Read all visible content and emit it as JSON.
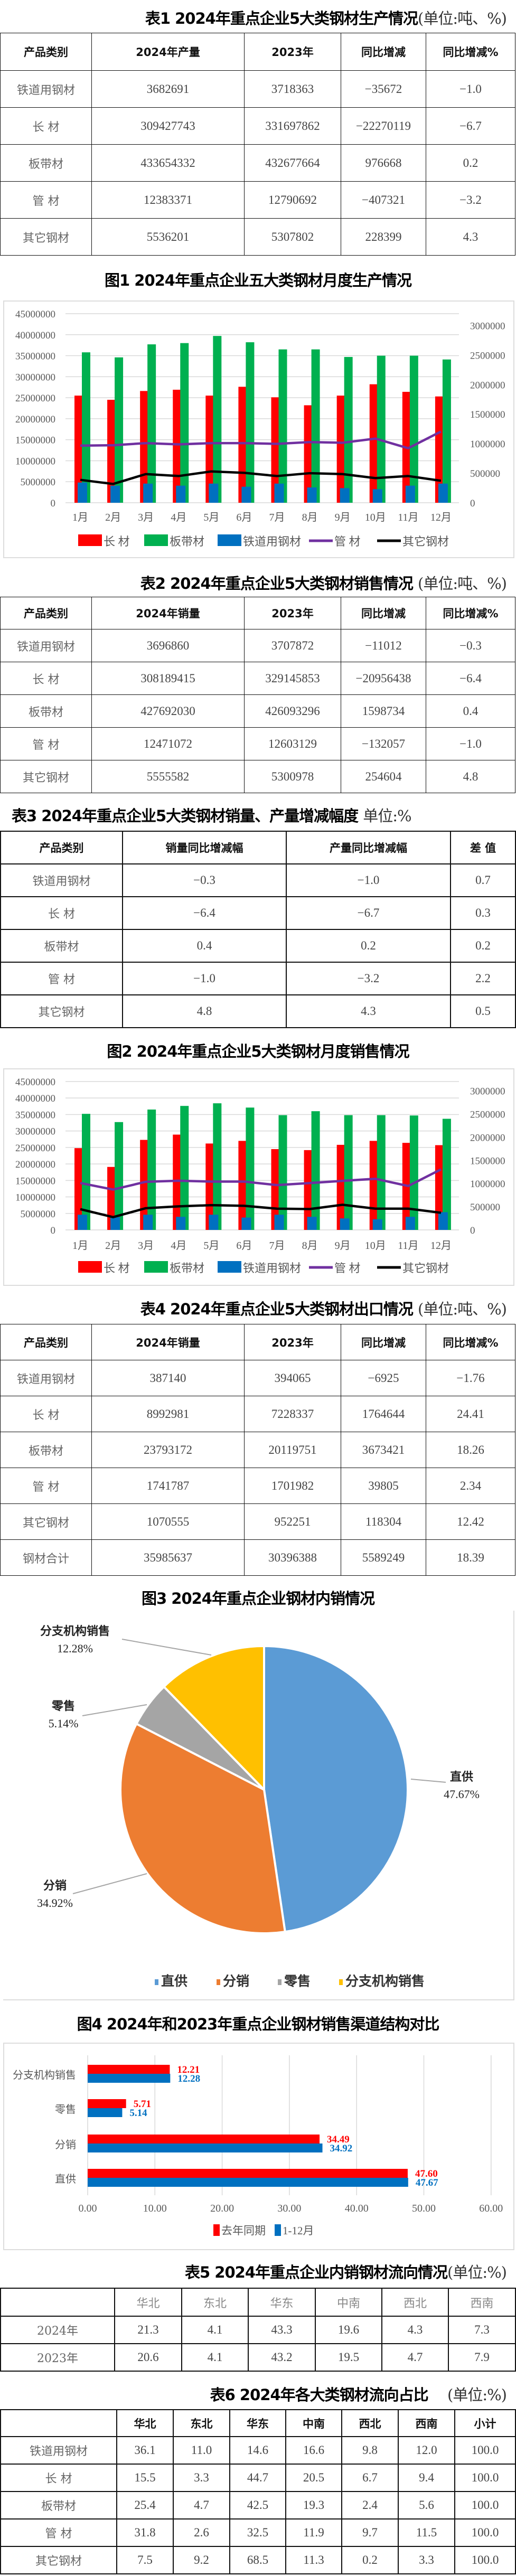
{
  "table1": {
    "title": "表1 2024年重点企业5大类钢材生产情况",
    "unit": "(单位:吨、%)",
    "headers": [
      "产品类别",
      "2024年产量",
      "2023年",
      "同比增减",
      "同比增减%"
    ],
    "rows": [
      [
        "铁道用钢材",
        "3682691",
        "3718363",
        "−35672",
        "−1.0"
      ],
      [
        "长  材",
        "309427743",
        "331697862",
        "−22270119",
        "−6.7"
      ],
      [
        "板带材",
        "433654332",
        "432677664",
        "976668",
        "0.2"
      ],
      [
        "管  材",
        "12383371",
        "12790692",
        "−407321",
        "−3.2"
      ],
      [
        "其它钢材",
        "5536201",
        "5307802",
        "228399",
        "4.3"
      ]
    ]
  },
  "fig1": {
    "title": "图1   2024年重点企业五大类钢材月度生产情况"
  },
  "table2": {
    "title": "表2 2024年重点企业5大类钢材销售情况",
    "unit": "(单位:吨、%)",
    "headers": [
      "产品类别",
      "2024年销量",
      "2023年",
      "同比增减",
      "同比增减%"
    ],
    "rows": [
      [
        "铁道用钢材",
        "3696860",
        "3707872",
        "−11012",
        "−0.3"
      ],
      [
        "长  材",
        "308189415",
        "329145853",
        "−20956438",
        "−6.4"
      ],
      [
        "板带材",
        "427692030",
        "426093296",
        "1598734",
        "0.4"
      ],
      [
        "管  材",
        "12471072",
        "12603129",
        "−132057",
        "−1.0"
      ],
      [
        "其它钢材",
        "5555582",
        "5300978",
        "254604",
        "4.8"
      ]
    ]
  },
  "table3": {
    "title": "表3 2024年重点企业5大类钢材销量、产量增减幅度",
    "unit": "单位:%",
    "headers": [
      "产品类别",
      "销量同比增减幅",
      "产量同比增减幅",
      "差 值"
    ],
    "rows": [
      [
        "铁道用钢材",
        "−0.3",
        "−1.0",
        "0.7"
      ],
      [
        "长  材",
        "−6.4",
        "−6.7",
        "0.3"
      ],
      [
        "板带材",
        "0.4",
        "0.2",
        "0.2"
      ],
      [
        "管  材",
        "−1.0",
        "−3.2",
        "2.2"
      ],
      [
        "其它钢材",
        "4.8",
        "4.3",
        "0.5"
      ]
    ]
  },
  "fig2": {
    "title": "图2  2024年重点企业5大类钢材月度销售情况"
  },
  "table4": {
    "title": "表4 2024年重点企业5大类钢材出口情况",
    "unit": "(单位:吨、%)",
    "headers": [
      "产品类别",
      "2024年销量",
      "2023年",
      "同比增减",
      "同比增减%"
    ],
    "rows": [
      [
        "铁道用钢材",
        "387140",
        "394065",
        "−6925",
        "−1.76"
      ],
      [
        "长  材",
        "8992981",
        "7228337",
        "1764644",
        "24.41"
      ],
      [
        "板带材",
        "23793172",
        "20119751",
        "3673421",
        "18.26"
      ],
      [
        "管  材",
        "1741787",
        "1701982",
        "39805",
        "2.34"
      ],
      [
        "其它钢材",
        "1070555",
        "952251",
        "118304",
        "12.42"
      ],
      [
        "钢材合计",
        "35985637",
        "30396388",
        "5589249",
        "18.39"
      ]
    ]
  },
  "fig3": {
    "title": "图3  2024年重点企业钢材内销情况"
  },
  "fig4": {
    "title": "图4  2024年和2023年重点企业钢材销售渠道结构对比"
  },
  "table5": {
    "title": "表5  2024年重点企业内销钢材流向情况",
    "unit": "(单位:%)",
    "headers": [
      "",
      "华北",
      "东北",
      "华东",
      "中南",
      "西北",
      "西南"
    ],
    "rows": [
      [
        "2024年",
        "21.3",
        "4.1",
        "43.3",
        "19.6",
        "4.3",
        "7.3"
      ],
      [
        "2023年",
        "20.6",
        "4.1",
        "43.2",
        "19.5",
        "4.7",
        "7.9"
      ]
    ]
  },
  "table6": {
    "title": "表6  2024年各大类钢材流向占比",
    "unit": "(单位:%)",
    "headers": [
      "",
      "华北",
      "东北",
      "华东",
      "中南",
      "西北",
      "西南",
      "小计"
    ],
    "rows": [
      [
        "铁道用钢材",
        "36.1",
        "11.0",
        "14.6",
        "16.6",
        "9.8",
        "12.0",
        "100.0"
      ],
      [
        "长  材",
        "15.5",
        "3.3",
        "44.7",
        "20.5",
        "6.7",
        "9.4",
        "100.0"
      ],
      [
        "板带材",
        "25.4",
        "4.7",
        "42.5",
        "19.3",
        "2.4",
        "5.6",
        "100.0"
      ],
      [
        "管  材",
        "31.8",
        "2.6",
        "32.5",
        "11.9",
        "9.7",
        "11.5",
        "100.0"
      ],
      [
        "其它钢材",
        "7.5",
        "9.2",
        "68.5",
        "11.3",
        "0.2",
        "3.3",
        "100.0"
      ]
    ]
  },
  "chart_data": [
    {
      "id": "fig1",
      "type": "bar+line",
      "title": "图1   2024年重点企业五大类钢材月度生产情况",
      "categories": [
        "1月",
        "2月",
        "3月",
        "4月",
        "5月",
        "6月",
        "7月",
        "8月",
        "9月",
        "10月",
        "11月",
        "12月"
      ],
      "ylim": [
        0,
        45000000
      ],
      "yticks": [
        "0",
        "5000000",
        "10000000",
        "15000000",
        "20000000",
        "25000000",
        "30000000",
        "35000000",
        "40000000",
        "45000000"
      ],
      "y2lim": [
        0,
        3200000
      ],
      "y2ticks": [
        "0",
        "500000",
        "1000000",
        "1500000",
        "2000000",
        "2500000",
        "3000000"
      ],
      "grid": true,
      "legend": "bottom",
      "series": [
        {
          "name": "长 材",
          "kind": "bar",
          "axis": "left",
          "color": "#FF0000",
          "values": [
            25500000,
            24500000,
            26600000,
            26900000,
            25500000,
            27600000,
            25100000,
            23200000,
            25500000,
            28200000,
            26400000,
            25300000
          ]
        },
        {
          "name": "板带材",
          "kind": "bar",
          "axis": "left",
          "color": "#00B050",
          "values": [
            35800000,
            34600000,
            37700000,
            38000000,
            39700000,
            38200000,
            36500000,
            36500000,
            34700000,
            35000000,
            35000000,
            34100000
          ]
        },
        {
          "name": "铁道用钢材",
          "kind": "bar",
          "axis": "right",
          "color": "#0070C0",
          "values": [
            342000,
            289000,
            324000,
            289000,
            324000,
            271000,
            324000,
            259000,
            247000,
            229000,
            289000,
            324000
          ]
        },
        {
          "name": "管 材",
          "kind": "line",
          "axis": "right",
          "color": "#7030A0",
          "values": [
            967000,
            973000,
            1009000,
            988000,
            1009000,
            1009000,
            997000,
            1027000,
            1015000,
            1086000,
            923000,
            1205000
          ]
        },
        {
          "name": "其它钢材",
          "kind": "line",
          "axis": "right",
          "color": "#000000",
          "values": [
            387000,
            318000,
            485000,
            452000,
            530000,
            506000,
            452000,
            500000,
            485000,
            417000,
            452000,
            372000
          ]
        }
      ]
    },
    {
      "id": "fig2",
      "type": "bar+line",
      "title": "图2  2024年重点企业5大类钢材月度销售情况",
      "categories": [
        "1月",
        "2月",
        "3月",
        "4月",
        "5月",
        "6月",
        "7月",
        "8月",
        "9月",
        "10月",
        "11月",
        "12月"
      ],
      "ylim": [
        0,
        45000000
      ],
      "yticks": [
        "0",
        "5000000",
        "10000000",
        "15000000",
        "20000000",
        "25000000",
        "30000000",
        "35000000",
        "40000000",
        "45000000"
      ],
      "y2lim": [
        0,
        3200000
      ],
      "y2ticks": [
        "0",
        "500000",
        "1000000",
        "1500000",
        "2000000",
        "2500000",
        "3000000"
      ],
      "grid": true,
      "legend": "bottom",
      "series": [
        {
          "name": "长 材",
          "kind": "bar",
          "axis": "left",
          "color": "#FF0000",
          "values": [
            24800000,
            19100000,
            27300000,
            28900000,
            26200000,
            27000000,
            24500000,
            24200000,
            25800000,
            27000000,
            26400000,
            25700000
          ]
        },
        {
          "name": "板带材",
          "kind": "bar",
          "axis": "left",
          "color": "#00B050",
          "values": [
            35200000,
            32700000,
            36500000,
            37600000,
            38400000,
            37100000,
            34800000,
            36000000,
            34800000,
            34800000,
            34700000,
            33700000
          ]
        },
        {
          "name": "铁道用钢材",
          "kind": "bar",
          "axis": "right",
          "color": "#0070C0",
          "values": [
            328000,
            275000,
            328000,
            282000,
            328000,
            267000,
            328000,
            282000,
            248000,
            229000,
            282000,
            382000
          ]
        },
        {
          "name": "管 材",
          "kind": "line",
          "axis": "right",
          "color": "#7030A0",
          "values": [
            1011000,
            870000,
            1038000,
            1061000,
            1042000,
            1042000,
            966000,
            1011000,
            1057000,
            1103000,
            947000,
            1305000
          ]
        },
        {
          "name": "其它钢材",
          "kind": "line",
          "axis": "right",
          "color": "#000000",
          "values": [
            447000,
            275000,
            469000,
            508000,
            534000,
            519000,
            458000,
            450000,
            542000,
            458000,
            458000,
            370000
          ]
        }
      ]
    },
    {
      "id": "fig3",
      "type": "pie",
      "title": "图3  2024年重点企业钢材内销情况",
      "legend": "bottom",
      "slices": [
        {
          "name": "直供",
          "value": 47.67,
          "label": "47.67%",
          "color": "#5B9BD5"
        },
        {
          "name": "分销",
          "value": 34.92,
          "label": "34.92%",
          "color": "#ED7D31"
        },
        {
          "name": "零售",
          "value": 5.14,
          "label": "5.14%",
          "color": "#A5A5A5"
        },
        {
          "name": "分支机构销售",
          "value": 12.28,
          "label": "12.28%",
          "color": "#FFC000"
        }
      ]
    },
    {
      "id": "fig4",
      "type": "bar",
      "orientation": "horizontal",
      "title": "图4  2024年和2023年重点企业钢材销售渠道结构对比",
      "categories": [
        "分支机构销售",
        "零售",
        "分销",
        "直供"
      ],
      "xlim": [
        0,
        60
      ],
      "xticks": [
        "0.00",
        "10.00",
        "20.00",
        "30.00",
        "40.00",
        "50.00",
        "60.00"
      ],
      "grid": true,
      "legend": "bottom",
      "series": [
        {
          "name": "去年同期",
          "color": "#FF0000",
          "values": [
            12.21,
            5.71,
            34.49,
            47.6
          ],
          "labels": [
            "12.21",
            "5.71",
            "34.49",
            "47.60"
          ]
        },
        {
          "name": "1-12月",
          "color": "#0070C0",
          "values": [
            12.28,
            5.14,
            34.92,
            47.67
          ],
          "labels": [
            "12.28",
            "5.14",
            "34.92",
            "47.67"
          ]
        }
      ]
    }
  ]
}
